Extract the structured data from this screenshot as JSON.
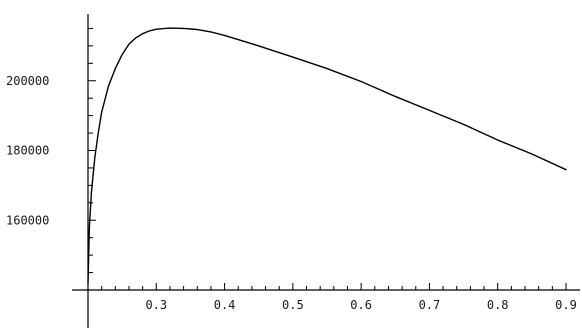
{
  "chart_data": {
    "type": "line",
    "title": "",
    "xlabel": "",
    "ylabel": "",
    "xlim": [
      0.2,
      0.9
    ],
    "ylim": [
      140000,
      218000
    ],
    "x_ticks": [
      0.3,
      0.4,
      0.5,
      0.6,
      0.7,
      0.8,
      0.9
    ],
    "x_tick_labels": [
      "0.3",
      "0.4",
      "0.5",
      "0.6",
      "0.7",
      "0.8",
      "0.9"
    ],
    "y_ticks": [
      160000,
      180000,
      200000
    ],
    "y_tick_labels": [
      "160000",
      "180000",
      "200000"
    ],
    "grid": false,
    "series": [
      {
        "x": [
          0.2,
          0.202,
          0.205,
          0.21,
          0.215,
          0.22,
          0.23,
          0.24,
          0.25,
          0.26,
          0.27,
          0.28,
          0.29,
          0.3,
          0.32,
          0.34,
          0.36,
          0.38,
          0.4,
          0.45,
          0.5,
          0.55,
          0.6,
          0.65,
          0.7,
          0.75,
          0.8,
          0.85,
          0.9
        ],
        "y": [
          142000,
          158000,
          168000,
          178000,
          185000,
          191000,
          198500,
          203500,
          207500,
          210500,
          212300,
          213500,
          214300,
          214800,
          215100,
          215000,
          214700,
          214000,
          213000,
          210000,
          206800,
          203500,
          199800,
          195500,
          191500,
          187500,
          183000,
          179000,
          174500
        ],
        "color": "#000000"
      }
    ]
  }
}
